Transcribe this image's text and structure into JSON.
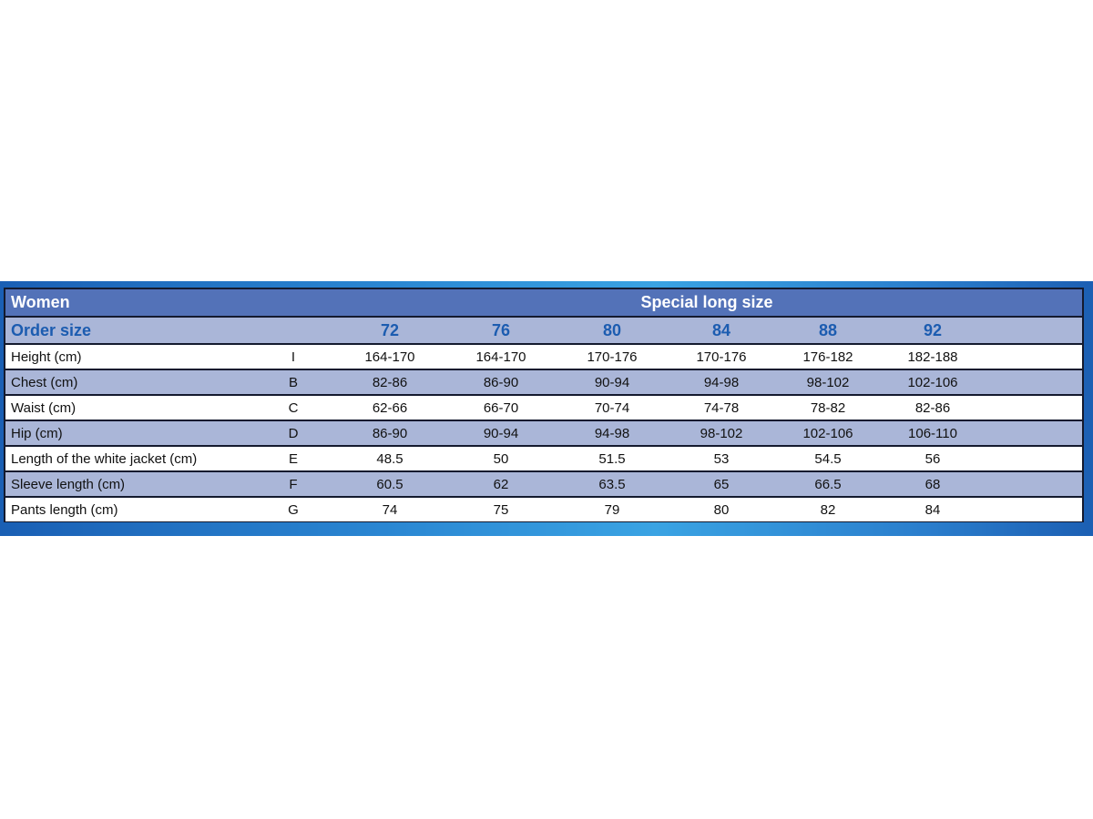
{
  "table": {
    "title_left": "Women",
    "title_right": "Special long size",
    "order_label": "Order size",
    "sizes": [
      "72",
      "76",
      "80",
      "84",
      "88",
      "92"
    ],
    "rows": [
      {
        "label": "Height (cm)",
        "code": "I",
        "values": [
          "164-170",
          "164-170",
          "170-176",
          "170-176",
          "176-182",
          "182-188"
        ]
      },
      {
        "label": "Chest (cm)",
        "code": "B",
        "values": [
          "82-86",
          "86-90",
          "90-94",
          "94-98",
          "98-102",
          "102-106"
        ]
      },
      {
        "label": "Waist (cm)",
        "code": "C",
        "values": [
          "62-66",
          "66-70",
          "70-74",
          "74-78",
          "78-82",
          "82-86"
        ]
      },
      {
        "label": "Hip (cm)",
        "code": "D",
        "values": [
          "86-90",
          "90-94",
          "94-98",
          "98-102",
          "102-106",
          "106-110"
        ]
      },
      {
        "label": "Length of the white jacket (cm)",
        "code": "E",
        "values": [
          "48.5",
          "50",
          "51.5",
          "53",
          "54.5",
          "56"
        ]
      },
      {
        "label": "Sleeve length (cm)",
        "code": "F",
        "values": [
          "60.5",
          "62",
          "63.5",
          "65",
          "66.5",
          "68"
        ]
      },
      {
        "label": "Pants length (cm)",
        "code": "G",
        "values": [
          "74",
          "75",
          "79",
          "80",
          "82",
          "84"
        ]
      }
    ]
  },
  "colors": {
    "header_bg": "#5372b8",
    "order_bg": "#aab6d8",
    "order_text": "#1c5cb0",
    "band_light": "#ffffff",
    "band_lavender": "#aab6d8",
    "border": "#141a2e"
  }
}
